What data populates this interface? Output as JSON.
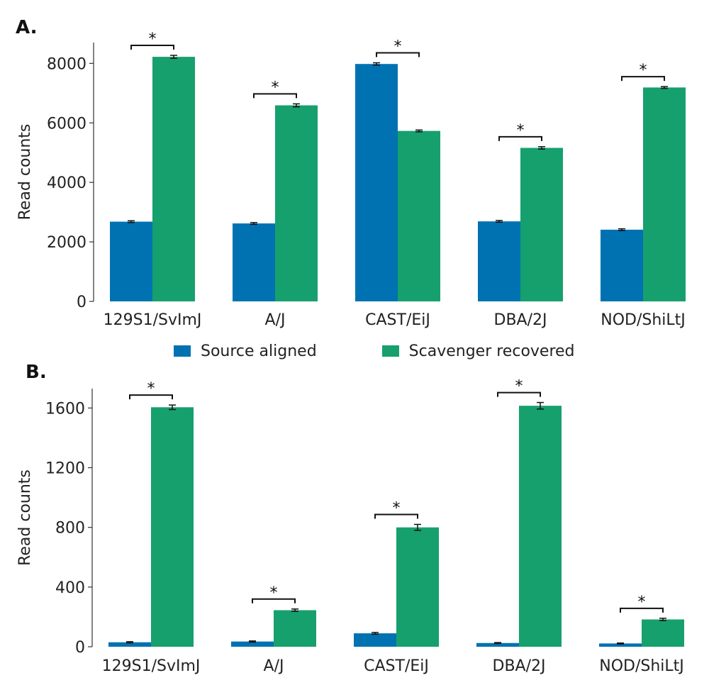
{
  "chart_data": [
    {
      "panel": "A.",
      "type": "bar",
      "categories": [
        "129S1/SvImJ",
        "A/J",
        "CAST/EiJ",
        "DBA/2J",
        "NOD/ShiLtJ"
      ],
      "series": [
        {
          "name": "Source aligned",
          "color": "#0072b2",
          "values": [
            2680,
            2620,
            7980,
            2690,
            2410
          ],
          "errors": [
            30,
            30,
            40,
            30,
            30
          ]
        },
        {
          "name": "Scavenger recovered",
          "color": "#16a06e",
          "values": [
            8220,
            6590,
            5730,
            5160,
            7190
          ],
          "errors": [
            50,
            50,
            30,
            40,
            30
          ]
        }
      ],
      "significance": [
        "*",
        "*",
        "*",
        "*",
        "*"
      ],
      "xlabel": "",
      "ylabel": "Read counts",
      "yticks": [
        0,
        2000,
        4000,
        6000,
        8000
      ],
      "ylim": [
        0,
        8700
      ],
      "grid": false,
      "legend": "bottom-center"
    },
    {
      "panel": "B.",
      "type": "bar",
      "categories": [
        "129S1/SvImJ",
        "A/J",
        "CAST/EiJ",
        "DBA/2J",
        "NOD/ShiLtJ"
      ],
      "series": [
        {
          "name": "Source aligned",
          "color": "#0072b2",
          "values": [
            30,
            35,
            90,
            25,
            22
          ],
          "errors": [
            4,
            4,
            6,
            3,
            3
          ]
        },
        {
          "name": "Scavenger recovered",
          "color": "#16a06e",
          "values": [
            1605,
            245,
            800,
            1615,
            183
          ],
          "errors": [
            15,
            8,
            20,
            22,
            8
          ]
        }
      ],
      "significance": [
        "*",
        "*",
        "*",
        "*",
        "*"
      ],
      "xlabel": "",
      "ylabel": "Read counts",
      "yticks": [
        0,
        400,
        800,
        1200,
        1600
      ],
      "ylim": [
        0,
        1730
      ],
      "grid": false
    }
  ],
  "legend": {
    "items": [
      {
        "label": "Source aligned",
        "color": "#0072b2"
      },
      {
        "label": "Scavenger recovered",
        "color": "#16a06e"
      }
    ]
  }
}
